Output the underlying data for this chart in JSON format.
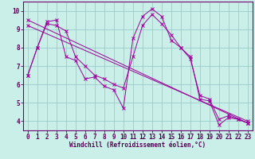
{
  "bg_color": "#caeee8",
  "line_color": "#990099",
  "grid_color": "#99cccc",
  "spine_color": "#770077",
  "tick_color": "#550055",
  "xlim": [
    -0.5,
    23.5
  ],
  "ylim": [
    3.5,
    10.5
  ],
  "xticks": [
    0,
    1,
    2,
    3,
    4,
    5,
    6,
    7,
    8,
    9,
    10,
    11,
    12,
    13,
    14,
    15,
    16,
    17,
    18,
    19,
    20,
    21,
    22,
    23
  ],
  "yticks": [
    4,
    5,
    6,
    7,
    8,
    9,
    10
  ],
  "xlabel": "Windchill (Refroidissement éolien,°C)",
  "line1_x": [
    0,
    1,
    2,
    3,
    4,
    5,
    6,
    7,
    8,
    9,
    10,
    11,
    12,
    13,
    14,
    15,
    16,
    17,
    18,
    19,
    20,
    21,
    22,
    23
  ],
  "line1_y": [
    6.5,
    8.0,
    9.4,
    9.5,
    7.5,
    7.3,
    6.3,
    6.4,
    5.9,
    5.7,
    4.7,
    8.5,
    9.7,
    10.1,
    9.7,
    8.4,
    8.0,
    7.5,
    5.2,
    5.1,
    3.8,
    4.2,
    4.1,
    3.9
  ],
  "line2_x": [
    0,
    1,
    2,
    3,
    4,
    5,
    6,
    7,
    8,
    9,
    10,
    11,
    12,
    13,
    14,
    15,
    16,
    17,
    18,
    19,
    20,
    21,
    22,
    23
  ],
  "line2_y": [
    6.5,
    8.0,
    9.3,
    9.2,
    8.9,
    7.5,
    7.0,
    6.5,
    6.3,
    6.0,
    5.8,
    7.5,
    9.2,
    9.8,
    9.3,
    8.7,
    8.0,
    7.4,
    5.4,
    5.2,
    4.1,
    4.3,
    4.1,
    3.9
  ],
  "line3_x": [
    0,
    23
  ],
  "line3_y": [
    9.5,
    3.9
  ],
  "line4_x": [
    0,
    23
  ],
  "line4_y": [
    9.2,
    4.0
  ],
  "tick_fontsize": 5.5,
  "xlabel_fontsize": 5.5
}
